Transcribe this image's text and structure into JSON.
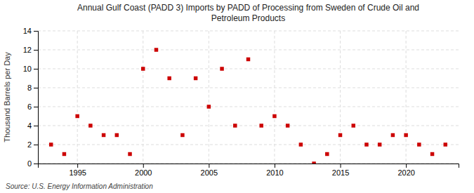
{
  "chart_data": {
    "type": "scatter",
    "title": "Annual Gulf Coast (PADD 3) Imports by PADD of Processing from Sweden of Crude Oil and\nPetroleum Products",
    "ylabel": "Thousand Barrels per Day",
    "source": "Source: U.S. Energy Information Administration",
    "color": "#cc0000",
    "marker": "square",
    "grid": true,
    "x": [
      1993,
      1994,
      1995,
      1996,
      1997,
      1998,
      1999,
      2000,
      2001,
      2002,
      2003,
      2004,
      2005,
      2006,
      2007,
      2008,
      2009,
      2010,
      2011,
      2012,
      2013,
      2014,
      2015,
      2016,
      2017,
      2018,
      2019,
      2020,
      2021,
      2022,
      2023
    ],
    "values": [
      2,
      1,
      5,
      4,
      3,
      3,
      1,
      10,
      12,
      9,
      3,
      9,
      6,
      10,
      4,
      11,
      4,
      5,
      4,
      2,
      0,
      1,
      3,
      4,
      2,
      2,
      3,
      3,
      2,
      1,
      2
    ],
    "xlim": [
      1992,
      2024
    ],
    "xticks": [
      1995,
      2000,
      2005,
      2010,
      2015,
      2020
    ],
    "ylim": [
      0,
      14
    ],
    "yticks": [
      0,
      2,
      4,
      6,
      8,
      10,
      12,
      14
    ]
  }
}
